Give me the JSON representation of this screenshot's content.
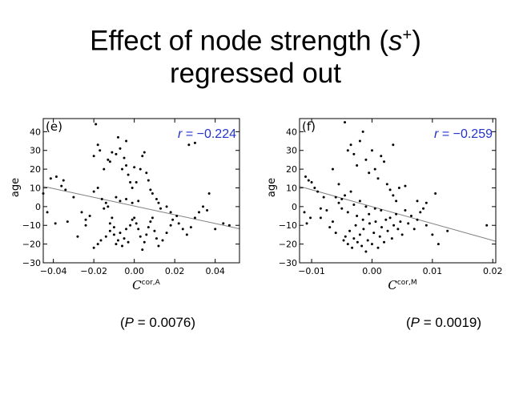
{
  "slide": {
    "title_line1_prefix": "Effect of node strength (",
    "title_s": "s",
    "title_sup": "+",
    "title_line1_suffix": ")",
    "title_line2": "regressed out"
  },
  "pvalues": {
    "left": {
      "open": "(",
      "P": "P",
      "rest": " = 0.0076)"
    },
    "right": {
      "open": "(",
      "P": "P",
      "rest": " = 0.0019)"
    }
  },
  "colors": {
    "annotation": "#2233cc",
    "regression_line": "#808080",
    "points": "#000000"
  },
  "chart_data": [
    {
      "type": "scatter",
      "panel_label": "(e)",
      "annotation_r": "r",
      "annotation_val": " = −0.224",
      "ylabel": "age",
      "xlabel_main": "C",
      "xlabel_sup": "cor,A",
      "xlim": [
        -0.045,
        0.052
      ],
      "ylim": [
        -30,
        47
      ],
      "xticks": [
        -0.04,
        -0.02,
        0.0,
        0.02,
        0.04
      ],
      "xtick_labels": [
        "−0.04",
        "−0.02",
        "0.00",
        "0.02",
        "0.04"
      ],
      "yticks": [
        -30,
        -20,
        -10,
        0,
        10,
        20,
        30,
        40
      ],
      "ytick_labels": [
        "−30",
        "−20",
        "−10",
        "0",
        "10",
        "20",
        "30",
        "40"
      ],
      "regression": {
        "x": [
          -0.045,
          0.052
        ],
        "y": [
          10.8,
          -11.8
        ]
      },
      "points": [
        [
          -0.0413,
          15
        ],
        [
          -0.0385,
          16
        ],
        [
          -0.035,
          14
        ],
        [
          -0.036,
          11
        ],
        [
          -0.034,
          9
        ],
        [
          -0.043,
          -3
        ],
        [
          -0.039,
          -9
        ],
        [
          -0.033,
          -8
        ],
        [
          -0.03,
          5
        ],
        [
          -0.028,
          -16
        ],
        [
          -0.026,
          -3
        ],
        [
          -0.024,
          -7
        ],
        [
          -0.022,
          -5
        ],
        [
          -0.02,
          8
        ],
        [
          -0.018,
          10
        ],
        [
          -0.016,
          4
        ],
        [
          -0.015,
          -1
        ],
        [
          -0.014,
          2
        ],
        [
          -0.013,
          0
        ],
        [
          -0.012,
          -9
        ],
        [
          -0.011,
          -6
        ],
        [
          -0.01,
          -11
        ],
        [
          -0.02,
          -22
        ],
        [
          -0.018,
          -20
        ],
        [
          -0.0165,
          -18
        ],
        [
          -0.014,
          -16
        ],
        [
          -0.012,
          -13
        ],
        [
          -0.01,
          -15
        ],
        [
          -0.009,
          -20
        ],
        [
          -0.008,
          -18
        ],
        [
          -0.007,
          -14
        ],
        [
          -0.006,
          -21
        ],
        [
          -0.005,
          -17
        ],
        [
          -0.004,
          -12
        ],
        [
          -0.003,
          -19
        ],
        [
          -0.002,
          -10
        ],
        [
          -0.001,
          -7
        ],
        [
          0.0,
          -6
        ],
        [
          0.001,
          -9
        ],
        [
          0.002,
          -12
        ],
        [
          0.003,
          -16
        ],
        [
          0.004,
          -23
        ],
        [
          0.005,
          -19
        ],
        [
          0.006,
          -15
        ],
        [
          0.007,
          -11
        ],
        [
          0.008,
          -8
        ],
        [
          0.009,
          -6
        ],
        [
          0.01,
          -13
        ],
        [
          0.011,
          -17
        ],
        [
          0.012,
          -21
        ],
        [
          0.014,
          -18
        ],
        [
          0.016,
          -14
        ],
        [
          0.018,
          -10
        ],
        [
          0.019,
          -7
        ],
        [
          0.021,
          -5
        ],
        [
          0.022,
          -9
        ],
        [
          0.024,
          -12
        ],
        [
          0.026,
          -15
        ],
        [
          0.028,
          -11
        ],
        [
          0.03,
          -6
        ],
        [
          0.032,
          -3
        ],
        [
          0.034,
          0
        ],
        [
          0.036,
          -2
        ],
        [
          0.037,
          7
        ],
        [
          0.04,
          -12
        ],
        [
          0.044,
          -9
        ],
        [
          0.047,
          -10
        ],
        [
          -0.02,
          27
        ],
        [
          -0.019,
          44
        ],
        [
          -0.018,
          33
        ],
        [
          -0.017,
          30
        ],
        [
          -0.015,
          20
        ],
        [
          -0.013,
          25
        ],
        [
          -0.011,
          29
        ],
        [
          -0.009,
          28
        ],
        [
          -0.007,
          31
        ],
        [
          -0.006,
          20
        ],
        [
          -0.005,
          26
        ],
        [
          -0.004,
          22
        ],
        [
          -0.003,
          17
        ],
        [
          -0.002,
          13
        ],
        [
          -0.001,
          10
        ],
        [
          0.001,
          13
        ],
        [
          0.003,
          20
        ],
        [
          0.004,
          27
        ],
        [
          0.005,
          29
        ],
        [
          0.006,
          18
        ],
        [
          0.007,
          14
        ],
        [
          0.008,
          9
        ],
        [
          0.009,
          7
        ],
        [
          0.011,
          4
        ],
        [
          0.012,
          2
        ],
        [
          0.013,
          -1
        ],
        [
          -0.008,
          37
        ],
        [
          -0.004,
          35
        ],
        [
          -0.012,
          24
        ],
        [
          0.0,
          21
        ],
        [
          -0.009,
          5
        ],
        [
          -0.007,
          3
        ],
        [
          -0.004,
          4
        ],
        [
          -0.001,
          2
        ],
        [
          0.002,
          3
        ],
        [
          0.018,
          -3
        ],
        [
          0.016,
          0
        ],
        [
          0.027,
          33
        ],
        [
          0.03,
          34
        ],
        [
          -0.045,
          7
        ],
        [
          -0.024,
          -10
        ]
      ]
    },
    {
      "type": "scatter",
      "panel_label": "(f)",
      "annotation_r": "r",
      "annotation_val": " = −0.259",
      "ylabel": "age",
      "xlabel_main": "C",
      "xlabel_sup": "cor,M",
      "xlim": [
        -0.012,
        0.0205
      ],
      "ylim": [
        -30,
        47
      ],
      "xticks": [
        -0.01,
        0.0,
        0.01,
        0.02
      ],
      "xtick_labels": [
        "−0.01",
        "0.00",
        "0.01",
        "0.02"
      ],
      "yticks": [
        -30,
        -20,
        -10,
        0,
        10,
        20,
        30,
        40
      ],
      "ytick_labels": [
        "−30",
        "−20",
        "−10",
        "0",
        "10",
        "20",
        "30",
        "40"
      ],
      "regression": {
        "x": [
          -0.012,
          0.0205
        ],
        "y": [
          10.8,
          -18.5
        ]
      },
      "points": [
        [
          -0.011,
          16
        ],
        [
          -0.0105,
          14
        ],
        [
          -0.01,
          13
        ],
        [
          -0.0095,
          10
        ],
        [
          -0.009,
          8
        ],
        [
          -0.0112,
          -3
        ],
        [
          -0.0108,
          -9
        ],
        [
          -0.0102,
          -6
        ],
        [
          -0.0085,
          -1
        ],
        [
          -0.008,
          5
        ],
        [
          -0.0075,
          -2
        ],
        [
          -0.007,
          -11
        ],
        [
          -0.0065,
          -8
        ],
        [
          -0.006,
          -14
        ],
        [
          -0.0055,
          12
        ],
        [
          -0.005,
          4
        ],
        [
          -0.0047,
          -18
        ],
        [
          -0.0044,
          -16
        ],
        [
          -0.004,
          -20
        ],
        [
          -0.0037,
          -13
        ],
        [
          -0.0033,
          -22
        ],
        [
          -0.003,
          -17
        ],
        [
          -0.0027,
          -10
        ],
        [
          -0.0024,
          -19
        ],
        [
          -0.002,
          -15
        ],
        [
          -0.0017,
          -21
        ],
        [
          -0.0014,
          -12
        ],
        [
          -0.001,
          -24
        ],
        [
          -0.0007,
          -18
        ],
        [
          -0.0004,
          -9
        ],
        [
          0.0,
          -20
        ],
        [
          0.0003,
          -14
        ],
        [
          0.0006,
          -8
        ],
        [
          0.001,
          -22
        ],
        [
          0.0013,
          -16
        ],
        [
          0.0016,
          -11
        ],
        [
          0.002,
          -19
        ],
        [
          0.0023,
          -7
        ],
        [
          0.0026,
          -13
        ],
        [
          0.003,
          -6
        ],
        [
          0.0033,
          -17
        ],
        [
          0.0036,
          -10
        ],
        [
          0.004,
          -4
        ],
        [
          0.0043,
          -12
        ],
        [
          0.0047,
          -8
        ],
        [
          0.005,
          -15
        ],
        [
          0.0055,
          -2
        ],
        [
          0.006,
          -9
        ],
        [
          0.0065,
          -5
        ],
        [
          0.007,
          -12
        ],
        [
          0.0075,
          -7
        ],
        [
          0.008,
          -3
        ],
        [
          0.009,
          -10
        ],
        [
          0.01,
          -15
        ],
        [
          0.011,
          -20
        ],
        [
          0.0125,
          -13
        ],
        [
          0.019,
          -10
        ],
        [
          0.0105,
          7
        ],
        [
          -0.0045,
          45
        ],
        [
          -0.004,
          30
        ],
        [
          -0.0035,
          33
        ],
        [
          -0.003,
          28
        ],
        [
          -0.0025,
          22
        ],
        [
          -0.002,
          35
        ],
        [
          -0.0015,
          40
        ],
        [
          -0.001,
          25
        ],
        [
          -0.0005,
          18
        ],
        [
          0.0,
          30
        ],
        [
          0.0005,
          20
        ],
        [
          0.001,
          15
        ],
        [
          0.0015,
          27
        ],
        [
          0.002,
          24
        ],
        [
          0.0025,
          12
        ],
        [
          0.003,
          9
        ],
        [
          0.0035,
          6
        ],
        [
          0.004,
          3
        ],
        [
          -0.006,
          5
        ],
        [
          -0.0055,
          2
        ],
        [
          -0.005,
          -1
        ],
        [
          -0.0045,
          6
        ],
        [
          -0.004,
          -3
        ],
        [
          -0.0035,
          8
        ],
        [
          -0.003,
          1
        ],
        [
          -0.0025,
          -5
        ],
        [
          -0.002,
          3
        ],
        [
          -0.0015,
          -7
        ],
        [
          -0.001,
          0
        ],
        [
          -0.0005,
          -4
        ],
        [
          0.0005,
          -1
        ],
        [
          0.0015,
          -2
        ],
        [
          0.0035,
          33
        ],
        [
          0.009,
          2
        ],
        [
          0.0085,
          -1
        ],
        [
          0.0075,
          3
        ],
        [
          0.0055,
          11
        ],
        [
          -0.0065,
          20
        ],
        [
          0.0045,
          10
        ],
        [
          -0.0085,
          -6
        ]
      ]
    }
  ]
}
